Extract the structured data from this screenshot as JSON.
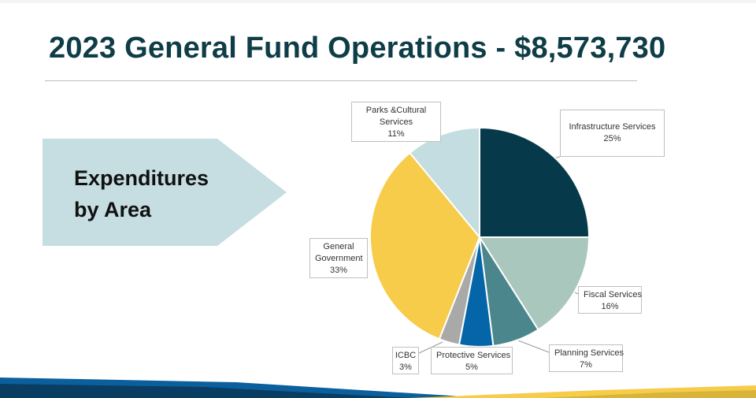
{
  "slide": {
    "title": "2023 General Fund Operations - $8,573,730",
    "callout_line1": "Expenditures",
    "callout_line2": "by Area"
  },
  "colors": {
    "title": "#0f3d47",
    "callout_fill": "#c6dde1"
  },
  "chart_data": {
    "type": "pie",
    "title": "",
    "slices": [
      {
        "name": "Infrastructure Services",
        "value": 25,
        "label": "25%",
        "color": "#063a4a"
      },
      {
        "name": "Fiscal Services",
        "value": 16,
        "label": "16%",
        "color": "#a9c7bc"
      },
      {
        "name": "Planning Services",
        "value": 7,
        "label": "7%",
        "color": "#4b868d"
      },
      {
        "name": "Protective Services",
        "value": 5,
        "label": "5%",
        "color": "#0466a8"
      },
      {
        "name": "ICBC",
        "value": 3,
        "label": "3%",
        "color": "#a9a9a9"
      },
      {
        "name": "General Government",
        "value": 33,
        "label": "33%",
        "color": "#f6cc4a"
      },
      {
        "name": "Parks &Cultural Services",
        "value": 11,
        "label": "11%",
        "color": "#c4dde1"
      }
    ]
  }
}
